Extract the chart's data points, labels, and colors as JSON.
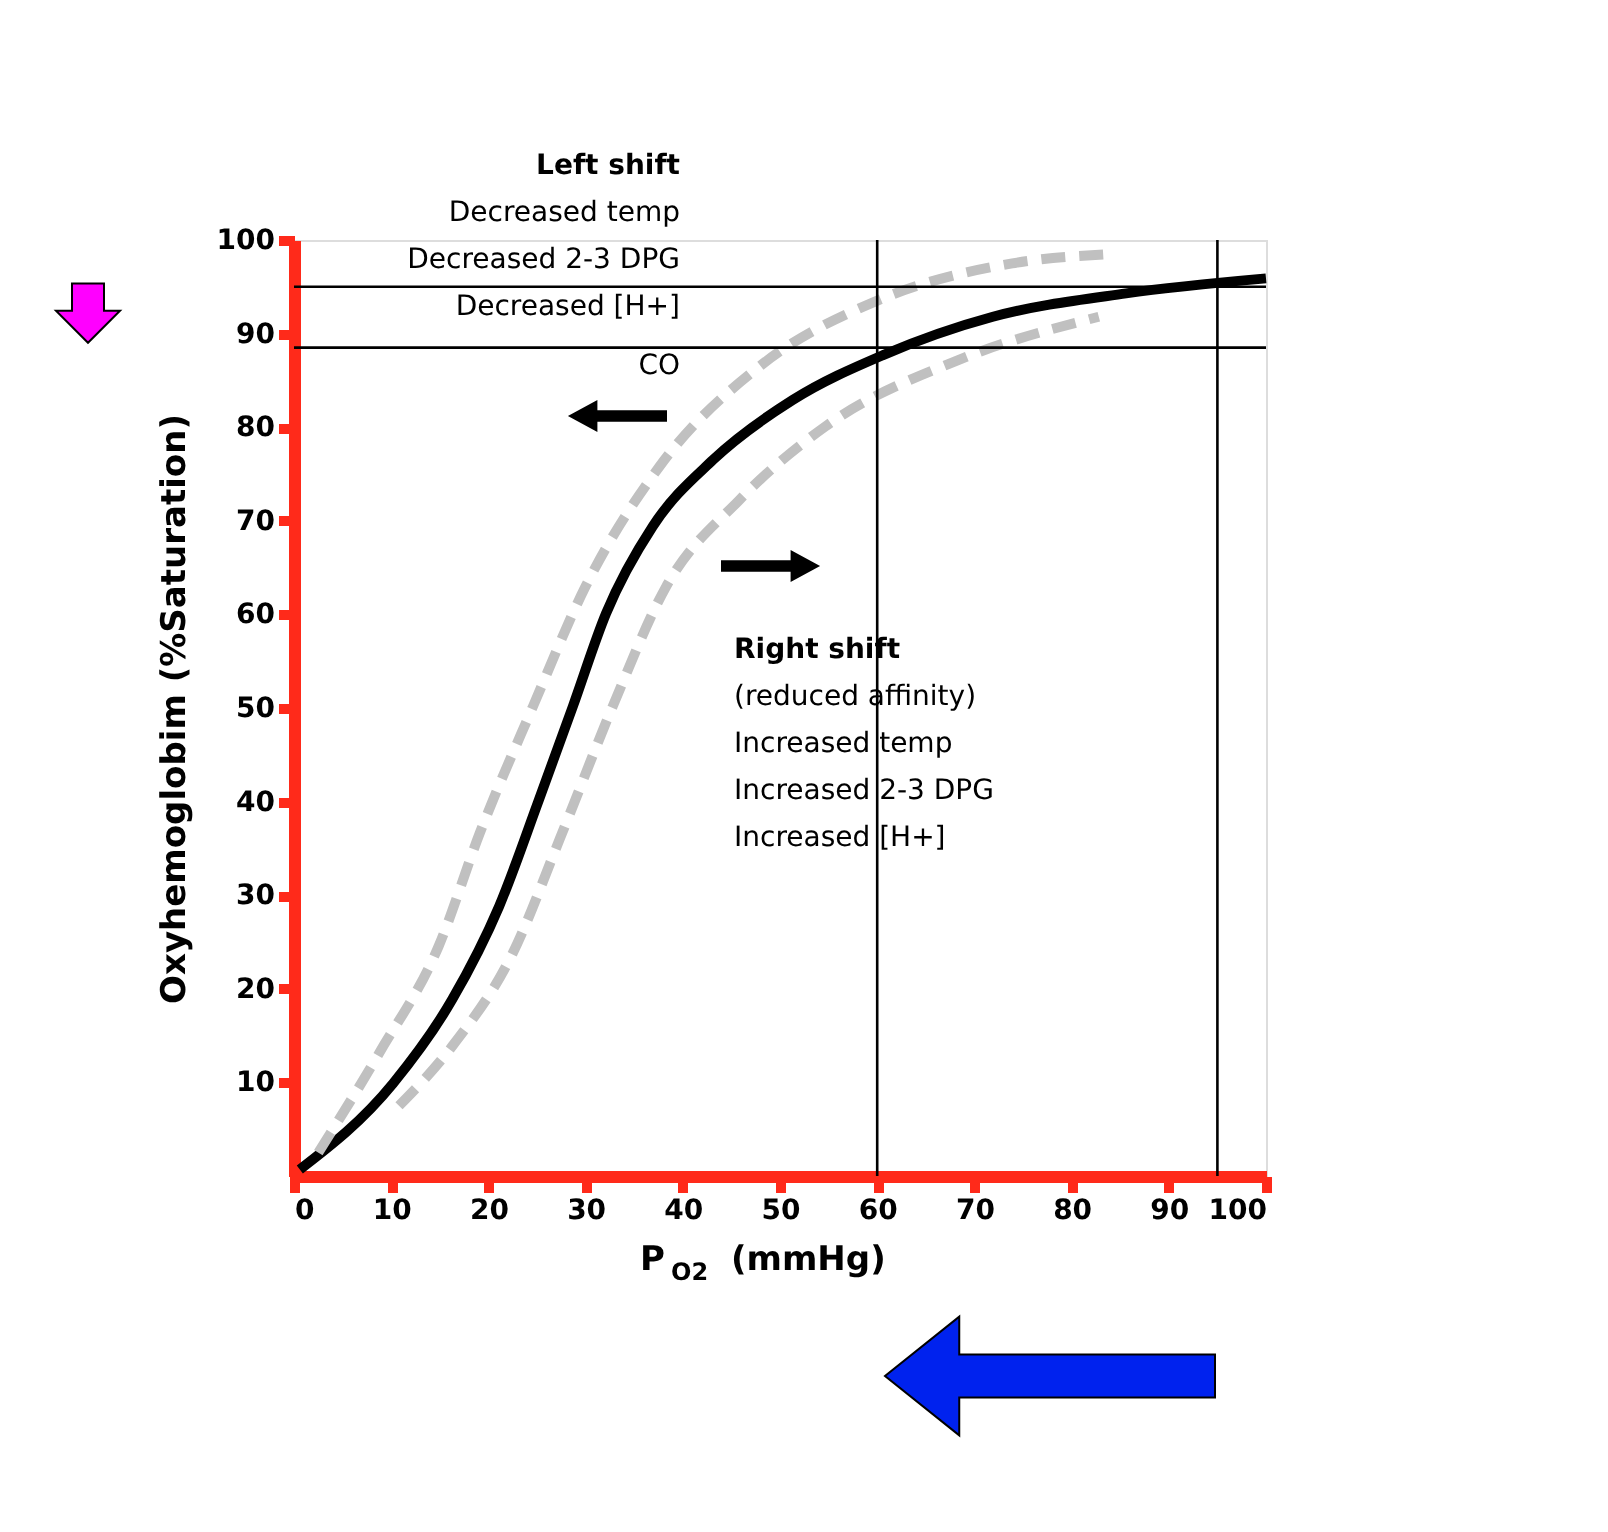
{
  "chart_data": {
    "type": "line",
    "xlabel": "P$_{O2}$  (mmHg)",
    "ylabel": "Oxyhemoglobim  (%Saturation)",
    "xlim": [
      0,
      100
    ],
    "ylim": [
      0,
      100
    ],
    "xticks": [
      0,
      10,
      20,
      30,
      40,
      50,
      60,
      70,
      80,
      90,
      100
    ],
    "yticks": [
      10,
      20,
      30,
      40,
      50,
      60,
      70,
      80,
      90,
      100
    ],
    "grid": false,
    "legend": false,
    "marker": "none",
    "series": [
      {
        "color": "#000000",
        "line_style": "solid",
        "x": [
          0.6,
          10.2,
          16.3,
          21.1,
          25.2,
          28.7,
          32.1,
          36.9,
          43.1,
          51.3,
          60.6,
          71.9,
          85.6,
          100
        ],
        "values": [
          0.7,
          9.9,
          18.9,
          28.8,
          40.2,
          50.2,
          60.1,
          69.4,
          76.5,
          82.9,
          87.7,
          91.8,
          94.3,
          95.9
        ]
      },
      {
        "color": "#c0c0c0",
        "line_style": "dashed",
        "x": [
          2.5,
          8.8,
          14.9,
          19.1,
          24.6,
          30.0,
          37.6,
          47.9,
          60.2,
          73.9,
          84.2
        ],
        "values": [
          2.5,
          13.2,
          24.6,
          36.6,
          50.2,
          63.0,
          75.8,
          86.5,
          93.6,
          97.5,
          98.5
        ]
      },
      {
        "color": "#c0c0c0",
        "line_style": "dashed",
        "x": [
          10.8,
          16.3,
          22.5,
          27.3,
          32.8,
          38.3,
          45.8,
          54.7,
          68.4,
          82.8
        ],
        "values": [
          7.5,
          13.9,
          23.8,
          35.9,
          50.2,
          63.0,
          72.2,
          80.1,
          87.2,
          91.8
        ]
      }
    ],
    "ref_lines": [
      {
        "axis": "y",
        "value": 95,
        "color": "#000000"
      },
      {
        "axis": "y",
        "value": 88.5,
        "color": "#000000"
      },
      {
        "axis": "x",
        "value": 60,
        "color": "#000000"
      },
      {
        "axis": "x",
        "value": 95,
        "color": "#000000"
      }
    ],
    "annotations": [
      "Left shift",
      "Decreased temp",
      "Decreased 2-3 DPG",
      "Decreased [H+]",
      "CO",
      "Right shift",
      "(reduced affinity)",
      "Increased temp",
      "Increased 2-3 DPG",
      "Increased [H+]"
    ]
  }
}
